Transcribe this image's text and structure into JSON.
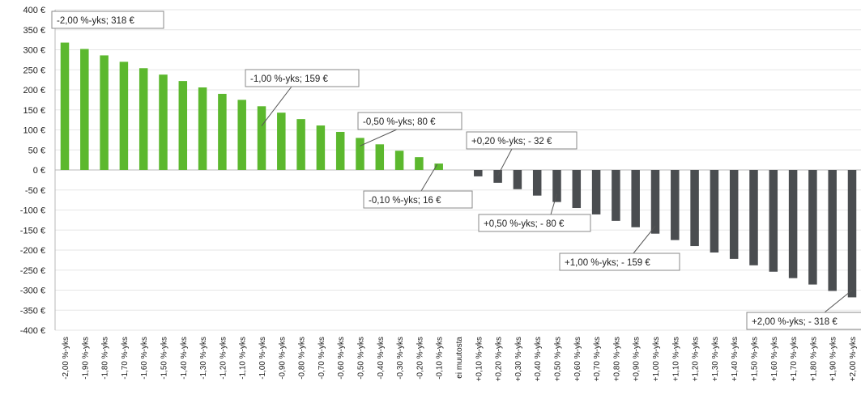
{
  "chart_data": {
    "type": "bar",
    "title": "",
    "xlabel": "",
    "ylabel": "",
    "ylim": [
      -400,
      400
    ],
    "yticks": [
      400,
      350,
      300,
      250,
      200,
      150,
      100,
      50,
      0,
      -50,
      -100,
      -150,
      -200,
      -250,
      -300,
      -350,
      -400
    ],
    "ytick_labels": [
      "400 €",
      "350 €",
      "300 €",
      "250 €",
      "200 €",
      "150 €",
      "100 €",
      "50 €",
      "0 €",
      "-50 €",
      "-100 €",
      "-150 €",
      "-200 €",
      "-250 €",
      "-300 €",
      "-350 €",
      "-400 €"
    ],
    "grid": true,
    "positive_color": "#5cb82e",
    "negative_color": "#4a4d50",
    "categories": [
      "-2,00 %-yks",
      "-1,90 %-yks",
      "-1,80 %-yks",
      "-1,70 %-yks",
      "-1,60 %-yks",
      "-1,50 %-yks",
      "-1,40 %-yks",
      "-1,30 %-yks",
      "-1,20 %-yks",
      "-1,10 %-yks",
      "-1,00 %-yks",
      "-0,90 %-yks",
      "-0,80 %-yks",
      "-0,70 %-yks",
      "-0,60 %-yks",
      "-0,50 %-yks",
      "-0,40 %-yks",
      "-0,30 %-yks",
      "-0,20 %-yks",
      "-0,10 %-yks",
      "ei muutosta",
      "+0,10 %-yks",
      "+0,20 %-yks",
      "+0,30 %-yks",
      "+0,40 %-yks",
      "+0,50 %-yks",
      "+0,60 %-yks",
      "+0,70 %-yks",
      "+0,80 %-yks",
      "+0,90 %-yks",
      "+1,00 %-yks",
      "+1,10 %-yks",
      "+1,20 %-yks",
      "+1,30 %-yks",
      "+1,40 %-yks",
      "+1,50 %-yks",
      "+1,60 %-yks",
      "+1,70 %-yks",
      "+1,80 %-yks",
      "+1,90 %-yks",
      "+2,00 %-yks"
    ],
    "values": [
      318,
      302,
      286,
      270,
      254,
      238,
      222,
      206,
      190,
      175,
      159,
      143,
      127,
      111,
      95,
      80,
      64,
      48,
      32,
      16,
      0,
      -16,
      -32,
      -48,
      -64,
      -80,
      -95,
      -111,
      -127,
      -143,
      -159,
      -175,
      -190,
      -206,
      -222,
      -238,
      -254,
      -270,
      -286,
      -302,
      -318
    ],
    "annotations": [
      {
        "text": "-2,00 %-yks;  318 €",
        "index": 0
      },
      {
        "text": "-1,00 %-yks;  159 €",
        "index": 10
      },
      {
        "text": "-0,50 %-yks;  80 €",
        "index": 15
      },
      {
        "text": "-0,10 %-yks;  16 €",
        "index": 19
      },
      {
        "text": "+0,20 %-yks; - 32 €",
        "index": 22
      },
      {
        "text": "+0,50 %-yks; - 80 €",
        "index": 25
      },
      {
        "text": "+1,00 %-yks; - 159 €",
        "index": 30
      },
      {
        "text": "+2,00 %-yks; - 318 €",
        "index": 40
      }
    ]
  }
}
